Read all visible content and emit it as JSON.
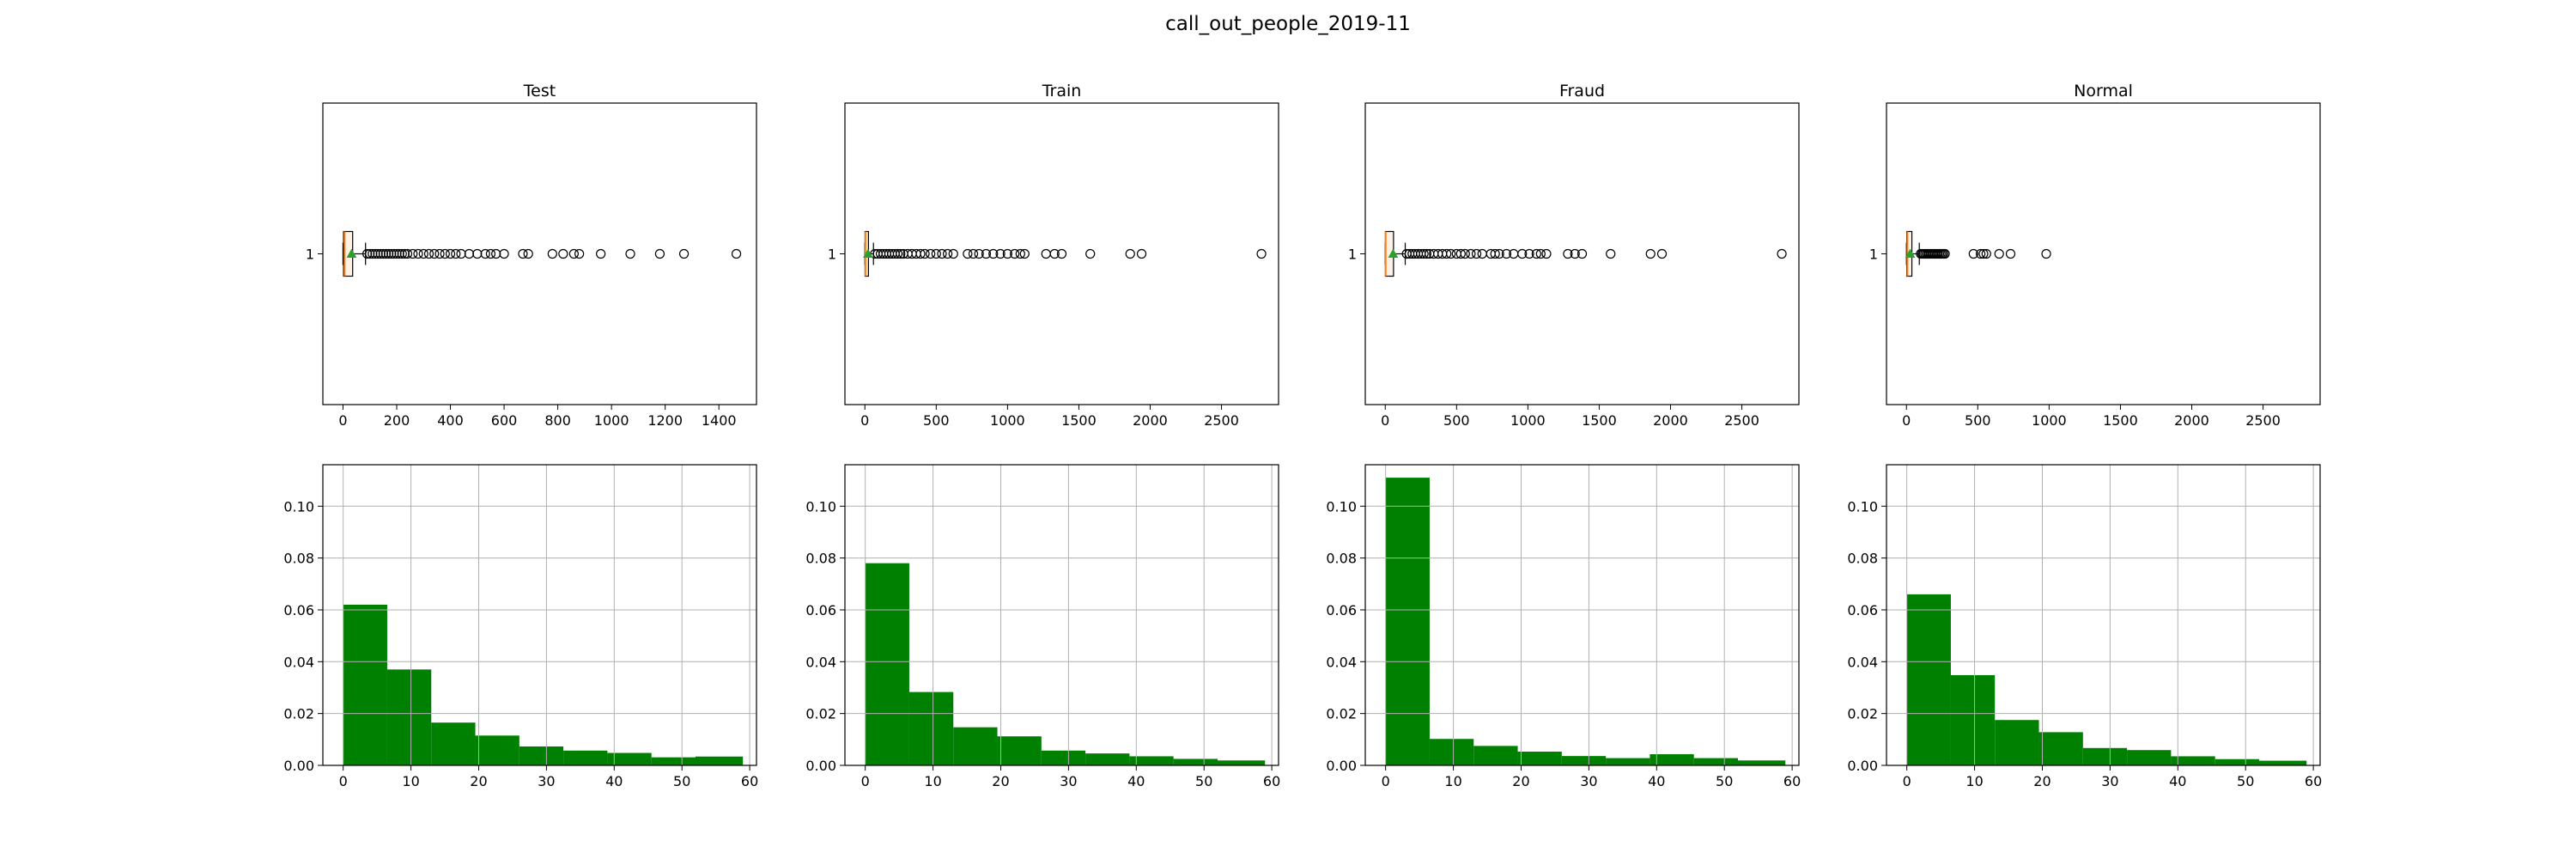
{
  "figure": {
    "suptitle": "call_out_people_2019-11"
  },
  "colors": {
    "hist_fill": "#008000",
    "box_median": "#ff7f0e",
    "box_mean": "#2ca02c",
    "box_fill": "#fff2e6"
  },
  "chart_data": [
    {
      "type": "box",
      "title": "Test",
      "orientation": "horizontal",
      "y_tick_label": "1",
      "xlim": [
        -75,
        1540
      ],
      "x_ticks": [
        0,
        200,
        400,
        600,
        800,
        1000,
        1200,
        1400
      ],
      "box": {
        "whisker_low": 0,
        "q1": 2,
        "median": 6,
        "q3": 36,
        "whisker_high": 84,
        "mean": 32
      },
      "outliers": [
        90,
        100,
        110,
        120,
        130,
        140,
        150,
        160,
        170,
        180,
        190,
        200,
        210,
        220,
        230,
        240,
        260,
        280,
        300,
        320,
        340,
        360,
        380,
        400,
        420,
        440,
        470,
        500,
        530,
        550,
        570,
        600,
        670,
        690,
        780,
        820,
        860,
        880,
        960,
        1070,
        1180,
        1270,
        1465
      ]
    },
    {
      "type": "box",
      "title": "Train",
      "orientation": "horizontal",
      "y_tick_label": "1",
      "xlim": [
        -140,
        2900
      ],
      "x_ticks": [
        0,
        500,
        1000,
        1500,
        2000,
        2500
      ],
      "box": {
        "whisker_low": 0,
        "q1": 1,
        "median": 4,
        "q3": 25,
        "whisker_high": 60,
        "mean": 22
      },
      "outliers": [
        70,
        90,
        110,
        130,
        150,
        170,
        190,
        210,
        230,
        250,
        270,
        300,
        330,
        360,
        390,
        420,
        460,
        500,
        540,
        580,
        620,
        720,
        760,
        800,
        850,
        900,
        950,
        1000,
        1050,
        1090,
        1120,
        1270,
        1330,
        1380,
        1580,
        1860,
        1940,
        2780
      ]
    },
    {
      "type": "box",
      "title": "Fraud",
      "orientation": "horizontal",
      "y_tick_label": "1",
      "xlim": [
        -140,
        2900
      ],
      "x_ticks": [
        0,
        500,
        1000,
        1500,
        2000,
        2500
      ],
      "box": {
        "whisker_low": 0,
        "q1": 1,
        "median": 3,
        "q3": 58,
        "whisker_high": 140,
        "mean": 55
      },
      "outliers": [
        150,
        170,
        190,
        210,
        230,
        250,
        270,
        290,
        310,
        340,
        370,
        400,
        430,
        460,
        500,
        530,
        560,
        600,
        640,
        680,
        740,
        770,
        800,
        850,
        900,
        960,
        1010,
        1060,
        1090,
        1130,
        1280,
        1330,
        1380,
        1580,
        1860,
        1940,
        2780
      ]
    },
    {
      "type": "box",
      "title": "Normal",
      "orientation": "horizontal",
      "y_tick_label": "1",
      "xlim": [
        -140,
        2900
      ],
      "x_ticks": [
        0,
        500,
        1000,
        1500,
        2000,
        2500
      ],
      "box": {
        "whisker_low": 0,
        "q1": 2,
        "median": 7,
        "q3": 38,
        "whisker_high": 90,
        "mean": 26
      },
      "outliers": [
        100,
        110,
        120,
        130,
        140,
        150,
        160,
        170,
        180,
        190,
        200,
        210,
        220,
        230,
        240,
        250,
        260,
        270,
        470,
        520,
        540,
        560,
        650,
        730,
        980
      ]
    },
    {
      "type": "bar",
      "title": "",
      "grid": true,
      "xlim": [
        -3,
        61
      ],
      "ylim": [
        0,
        0.116
      ],
      "x_ticks": [
        0,
        10,
        20,
        30,
        40,
        50,
        60
      ],
      "y_ticks": [
        0.0,
        0.02,
        0.04,
        0.06,
        0.08,
        0.1
      ],
      "bin_edges": [
        0,
        6.5,
        13,
        19.5,
        26,
        32.5,
        39,
        45.5,
        52,
        59
      ],
      "values": [
        0.062,
        0.037,
        0.0165,
        0.0115,
        0.0073,
        0.0057,
        0.0048,
        0.0031,
        0.0034
      ]
    },
    {
      "type": "bar",
      "title": "",
      "grid": true,
      "xlim": [
        -3,
        61
      ],
      "ylim": [
        0,
        0.116
      ],
      "x_ticks": [
        0,
        10,
        20,
        30,
        40,
        50,
        60
      ],
      "y_ticks": [
        0.0,
        0.02,
        0.04,
        0.06,
        0.08,
        0.1
      ],
      "bin_edges": [
        0,
        6.5,
        13,
        19.5,
        26,
        32.5,
        39,
        45.5,
        52,
        59
      ],
      "values": [
        0.078,
        0.0283,
        0.0147,
        0.0112,
        0.0057,
        0.0046,
        0.0035,
        0.0025,
        0.0019
      ]
    },
    {
      "type": "bar",
      "title": "",
      "grid": true,
      "xlim": [
        -3,
        61
      ],
      "ylim": [
        0,
        0.116
      ],
      "x_ticks": [
        0,
        10,
        20,
        30,
        40,
        50,
        60
      ],
      "y_ticks": [
        0.0,
        0.02,
        0.04,
        0.06,
        0.08,
        0.1
      ],
      "bin_edges": [
        0,
        6.5,
        13,
        19.5,
        26,
        32.5,
        39,
        45.5,
        52,
        59
      ],
      "values": [
        0.111,
        0.0102,
        0.0075,
        0.0053,
        0.0036,
        0.0028,
        0.0043,
        0.0028,
        0.0019
      ]
    },
    {
      "type": "bar",
      "title": "",
      "grid": true,
      "xlim": [
        -3,
        61
      ],
      "ylim": [
        0,
        0.116
      ],
      "x_ticks": [
        0,
        10,
        20,
        30,
        40,
        50,
        60
      ],
      "y_ticks": [
        0.0,
        0.02,
        0.04,
        0.06,
        0.08,
        0.1
      ],
      "bin_edges": [
        0,
        6.5,
        13,
        19.5,
        26,
        32.5,
        39,
        45.5,
        52,
        59
      ],
      "values": [
        0.066,
        0.0348,
        0.0175,
        0.0128,
        0.0067,
        0.0059,
        0.0035,
        0.0024,
        0.0018
      ]
    }
  ]
}
